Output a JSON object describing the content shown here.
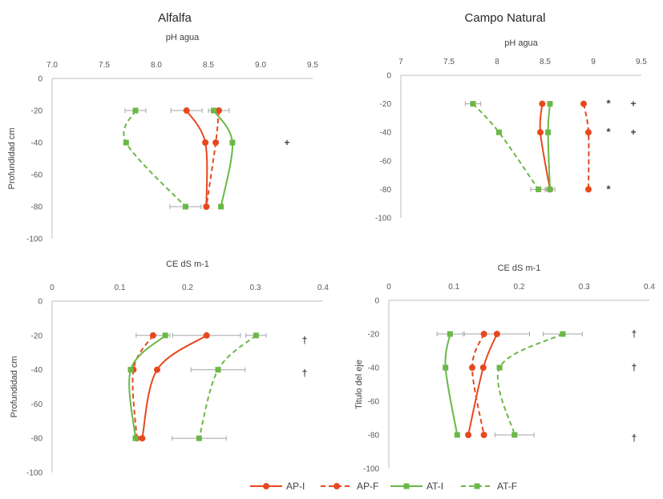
{
  "column_titles": [
    "Alfalfa",
    "Campo Natural"
  ],
  "legend": [
    {
      "label": "AP-I",
      "color": "#e8481e",
      "dash": false,
      "marker": "circle"
    },
    {
      "label": "AP-F",
      "color": "#e8481e",
      "dash": true,
      "marker": "circle"
    },
    {
      "label": "AT-I",
      "color": "#6ab846",
      "dash": false,
      "marker": "square"
    },
    {
      "label": "AT-F",
      "color": "#6ab846",
      "dash": true,
      "marker": "square"
    }
  ],
  "chart_data": [
    {
      "type": "line",
      "title": "pH agua",
      "column_title": "Alfalfa",
      "xlabel": "",
      "ylabel": "Profundidad cm",
      "xlim": [
        7.0,
        9.5
      ],
      "ylim": [
        -100,
        0
      ],
      "x_tick_labels": [
        "7.0",
        "7.5",
        "8.0",
        "8.5",
        "9.0",
        "9.5"
      ],
      "y_tick_labels": [
        "0",
        "-20",
        "-40",
        "-60",
        "-80",
        "-100"
      ],
      "depths": [
        -20,
        -40,
        -80
      ],
      "series": [
        {
          "name": "AP-I",
          "values": [
            8.29,
            8.47,
            8.48
          ],
          "err": [
            0.15,
            0.0,
            0.0
          ]
        },
        {
          "name": "AP-F",
          "values": [
            8.6,
            8.57,
            8.48
          ],
          "err": [
            0.1,
            0.0,
            0.0
          ]
        },
        {
          "name": "AT-I",
          "values": [
            8.55,
            8.73,
            8.62
          ],
          "err": [
            0.0,
            0.0,
            0.0
          ]
        },
        {
          "name": "AT-F",
          "values": [
            7.8,
            7.71,
            8.28
          ],
          "err": [
            0.1,
            0.0,
            0.15
          ]
        }
      ],
      "significance": [
        {
          "depth": -40,
          "mark": "+"
        }
      ]
    },
    {
      "type": "line",
      "title": "pH agua",
      "column_title": "Campo Natural",
      "xlabel": "",
      "ylabel": "",
      "xlim": [
        7,
        9.5
      ],
      "ylim": [
        -100,
        0
      ],
      "x_tick_labels": [
        "7",
        "7.5",
        "8",
        "8.5",
        "9",
        "9.5"
      ],
      "y_tick_labels": [
        "0",
        "-20",
        "-40",
        "-60",
        "-80",
        "-100"
      ],
      "depths": [
        -20,
        -40,
        -80
      ],
      "series": [
        {
          "name": "AP-I",
          "values": [
            8.47,
            8.45,
            8.55
          ],
          "err": [
            0.0,
            0.0,
            0.0
          ]
        },
        {
          "name": "AP-F",
          "values": [
            8.9,
            8.95,
            8.95
          ],
          "err": [
            0.0,
            0.0,
            0.0
          ]
        },
        {
          "name": "AT-I",
          "values": [
            8.55,
            8.53,
            8.55
          ],
          "err": [
            0.0,
            0.0,
            0.05
          ]
        },
        {
          "name": "AT-F",
          "values": [
            7.75,
            8.02,
            8.43
          ],
          "err": [
            0.08,
            0.0,
            0.08
          ]
        }
      ],
      "significance": [
        {
          "depth": -20,
          "mark": "*"
        },
        {
          "depth": -20,
          "mark": "+"
        },
        {
          "depth": -40,
          "mark": "*"
        },
        {
          "depth": -40,
          "mark": "+"
        },
        {
          "depth": -80,
          "mark": "*"
        }
      ]
    },
    {
      "type": "line",
      "title": "CE dS m-1",
      "column_title": "",
      "xlabel": "",
      "ylabel": "Profundidad cm",
      "xlim": [
        0,
        0.4
      ],
      "ylim": [
        -100,
        0
      ],
      "x_tick_labels": [
        "0",
        "0.1",
        "0.2",
        "0.3",
        "0.4"
      ],
      "y_tick_labels": [
        "0",
        "-20",
        "-40",
        "-60",
        "-80",
        "-100"
      ],
      "depths": [
        -20,
        -40,
        -80
      ],
      "series": [
        {
          "name": "AP-I",
          "values": [
            0.228,
            0.155,
            0.133
          ],
          "err": [
            0.05,
            0.0,
            0.0
          ]
        },
        {
          "name": "AP-F",
          "values": [
            0.149,
            0.12,
            0.125
          ],
          "err": [
            0.025,
            0.0,
            0.0
          ]
        },
        {
          "name": "AT-I",
          "values": [
            0.167,
            0.116,
            0.123
          ],
          "err": [
            0.0,
            0.0,
            0.0
          ]
        },
        {
          "name": "AT-F",
          "values": [
            0.301,
            0.245,
            0.217
          ],
          "err": [
            0.015,
            0.04,
            0.04
          ]
        }
      ],
      "significance": [
        {
          "depth": -23,
          "mark": "†"
        },
        {
          "depth": -42,
          "mark": "†"
        }
      ]
    },
    {
      "type": "line",
      "title": "CE dS m-1",
      "column_title": "",
      "xlabel": "",
      "ylabel": "Titulo del eje",
      "xlim": [
        0,
        0.4
      ],
      "ylim": [
        -100,
        0
      ],
      "x_tick_labels": [
        "0",
        "0.1",
        "0.2",
        "0.3",
        "0.4"
      ],
      "y_tick_labels": [
        "0",
        "-20",
        "-40",
        "-60",
        "-80",
        "-100"
      ],
      "depths": [
        -20,
        -40,
        -80
      ],
      "series": [
        {
          "name": "AP-I",
          "values": [
            0.166,
            0.145,
            0.122
          ],
          "err": [
            0.05,
            0.0,
            0.0
          ]
        },
        {
          "name": "AP-F",
          "values": [
            0.146,
            0.128,
            0.146
          ],
          "err": [
            0.0,
            0.0,
            0.0
          ]
        },
        {
          "name": "AT-I",
          "values": [
            0.094,
            0.087,
            0.105
          ],
          "err": [
            0.02,
            0.0,
            0.0
          ]
        },
        {
          "name": "AT-F",
          "values": [
            0.267,
            0.17,
            0.193
          ],
          "err": [
            0.03,
            0.0,
            0.03
          ]
        }
      ],
      "significance": [
        {
          "depth": -20,
          "mark": "†"
        },
        {
          "depth": -40,
          "mark": "†"
        },
        {
          "depth": -82,
          "mark": "†"
        }
      ]
    }
  ]
}
